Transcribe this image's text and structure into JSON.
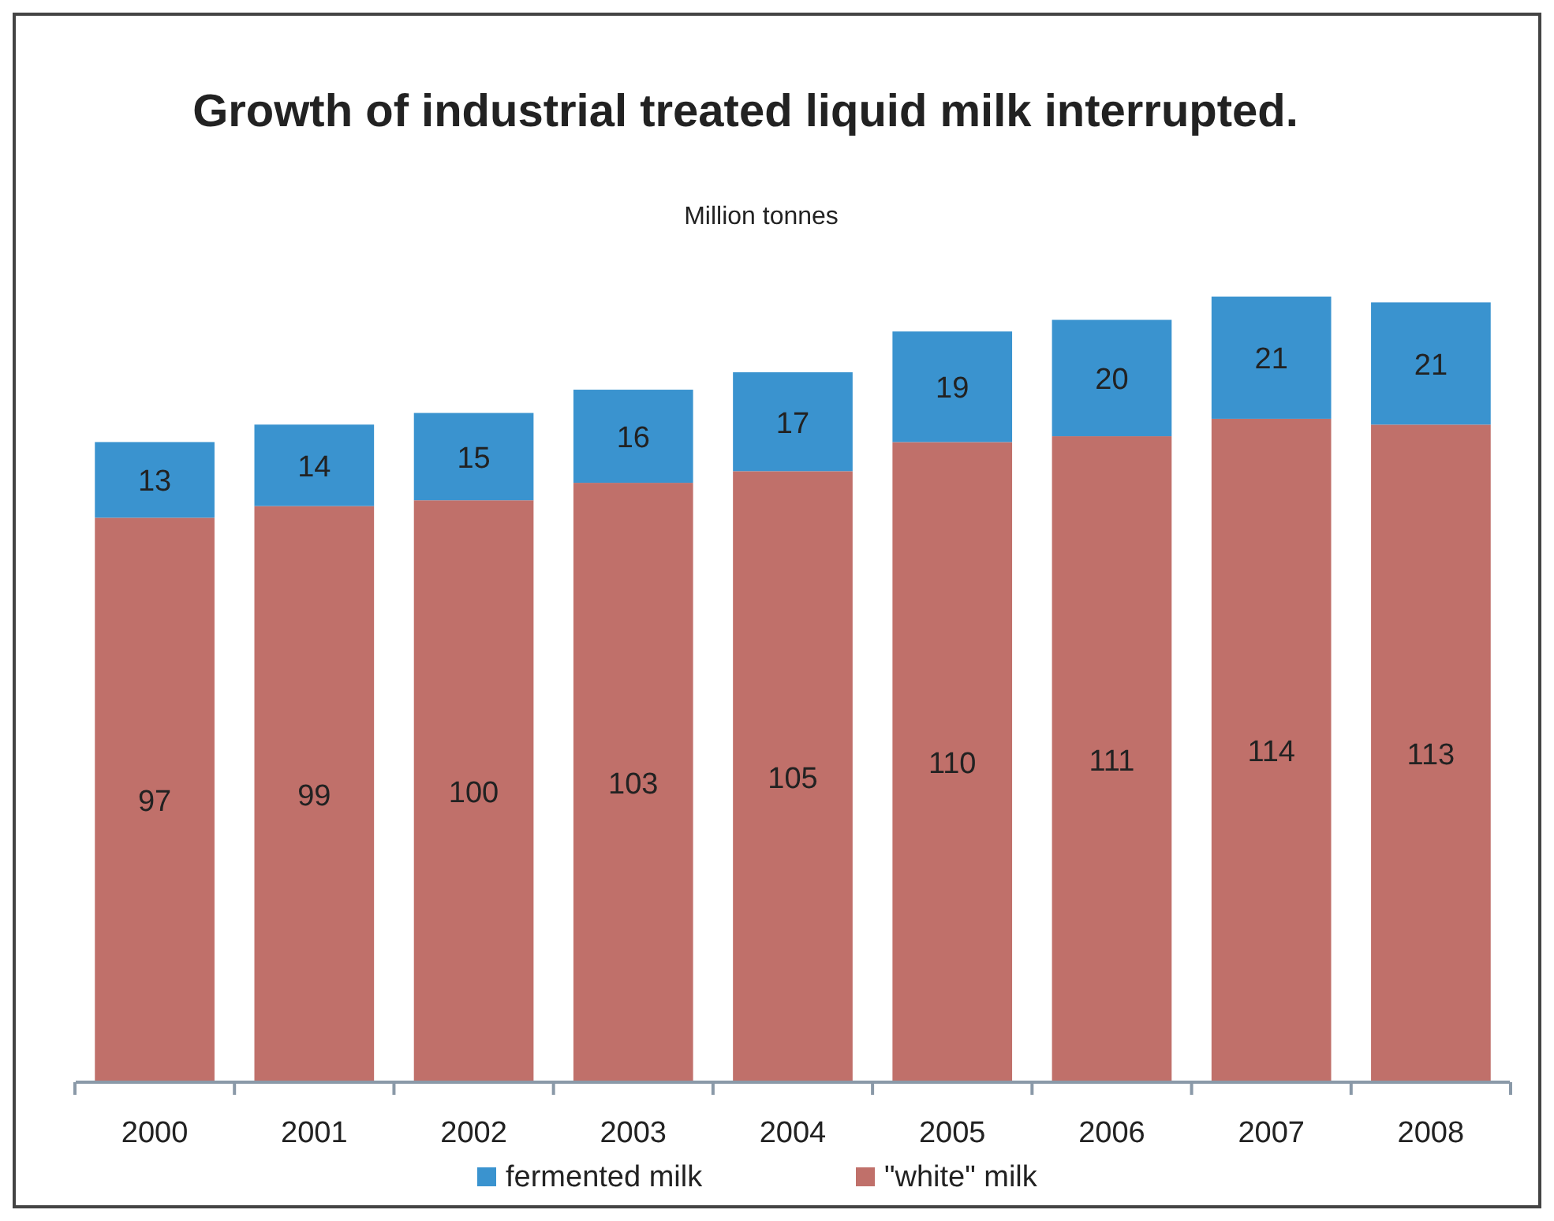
{
  "chart_data": {
    "type": "bar",
    "title": "Growth of industrial treated liquid milk interrupted.",
    "subtitle": "Million tonnes",
    "categories": [
      "2000",
      "2001",
      "2002",
      "2003",
      "2004",
      "2005",
      "2006",
      "2007",
      "2008"
    ],
    "stacked": true,
    "data_labels": true,
    "legend": "bottom",
    "tick_labels": "x",
    "series": [
      {
        "name": "\"white\" milk",
        "color": "#c0706a",
        "values": [
          97,
          99,
          100,
          103,
          105,
          110,
          111,
          114,
          113
        ]
      },
      {
        "name": "fermented milk",
        "color": "#3a93cf",
        "values": [
          13,
          14,
          15,
          16,
          17,
          19,
          20,
          21,
          21
        ]
      }
    ]
  }
}
